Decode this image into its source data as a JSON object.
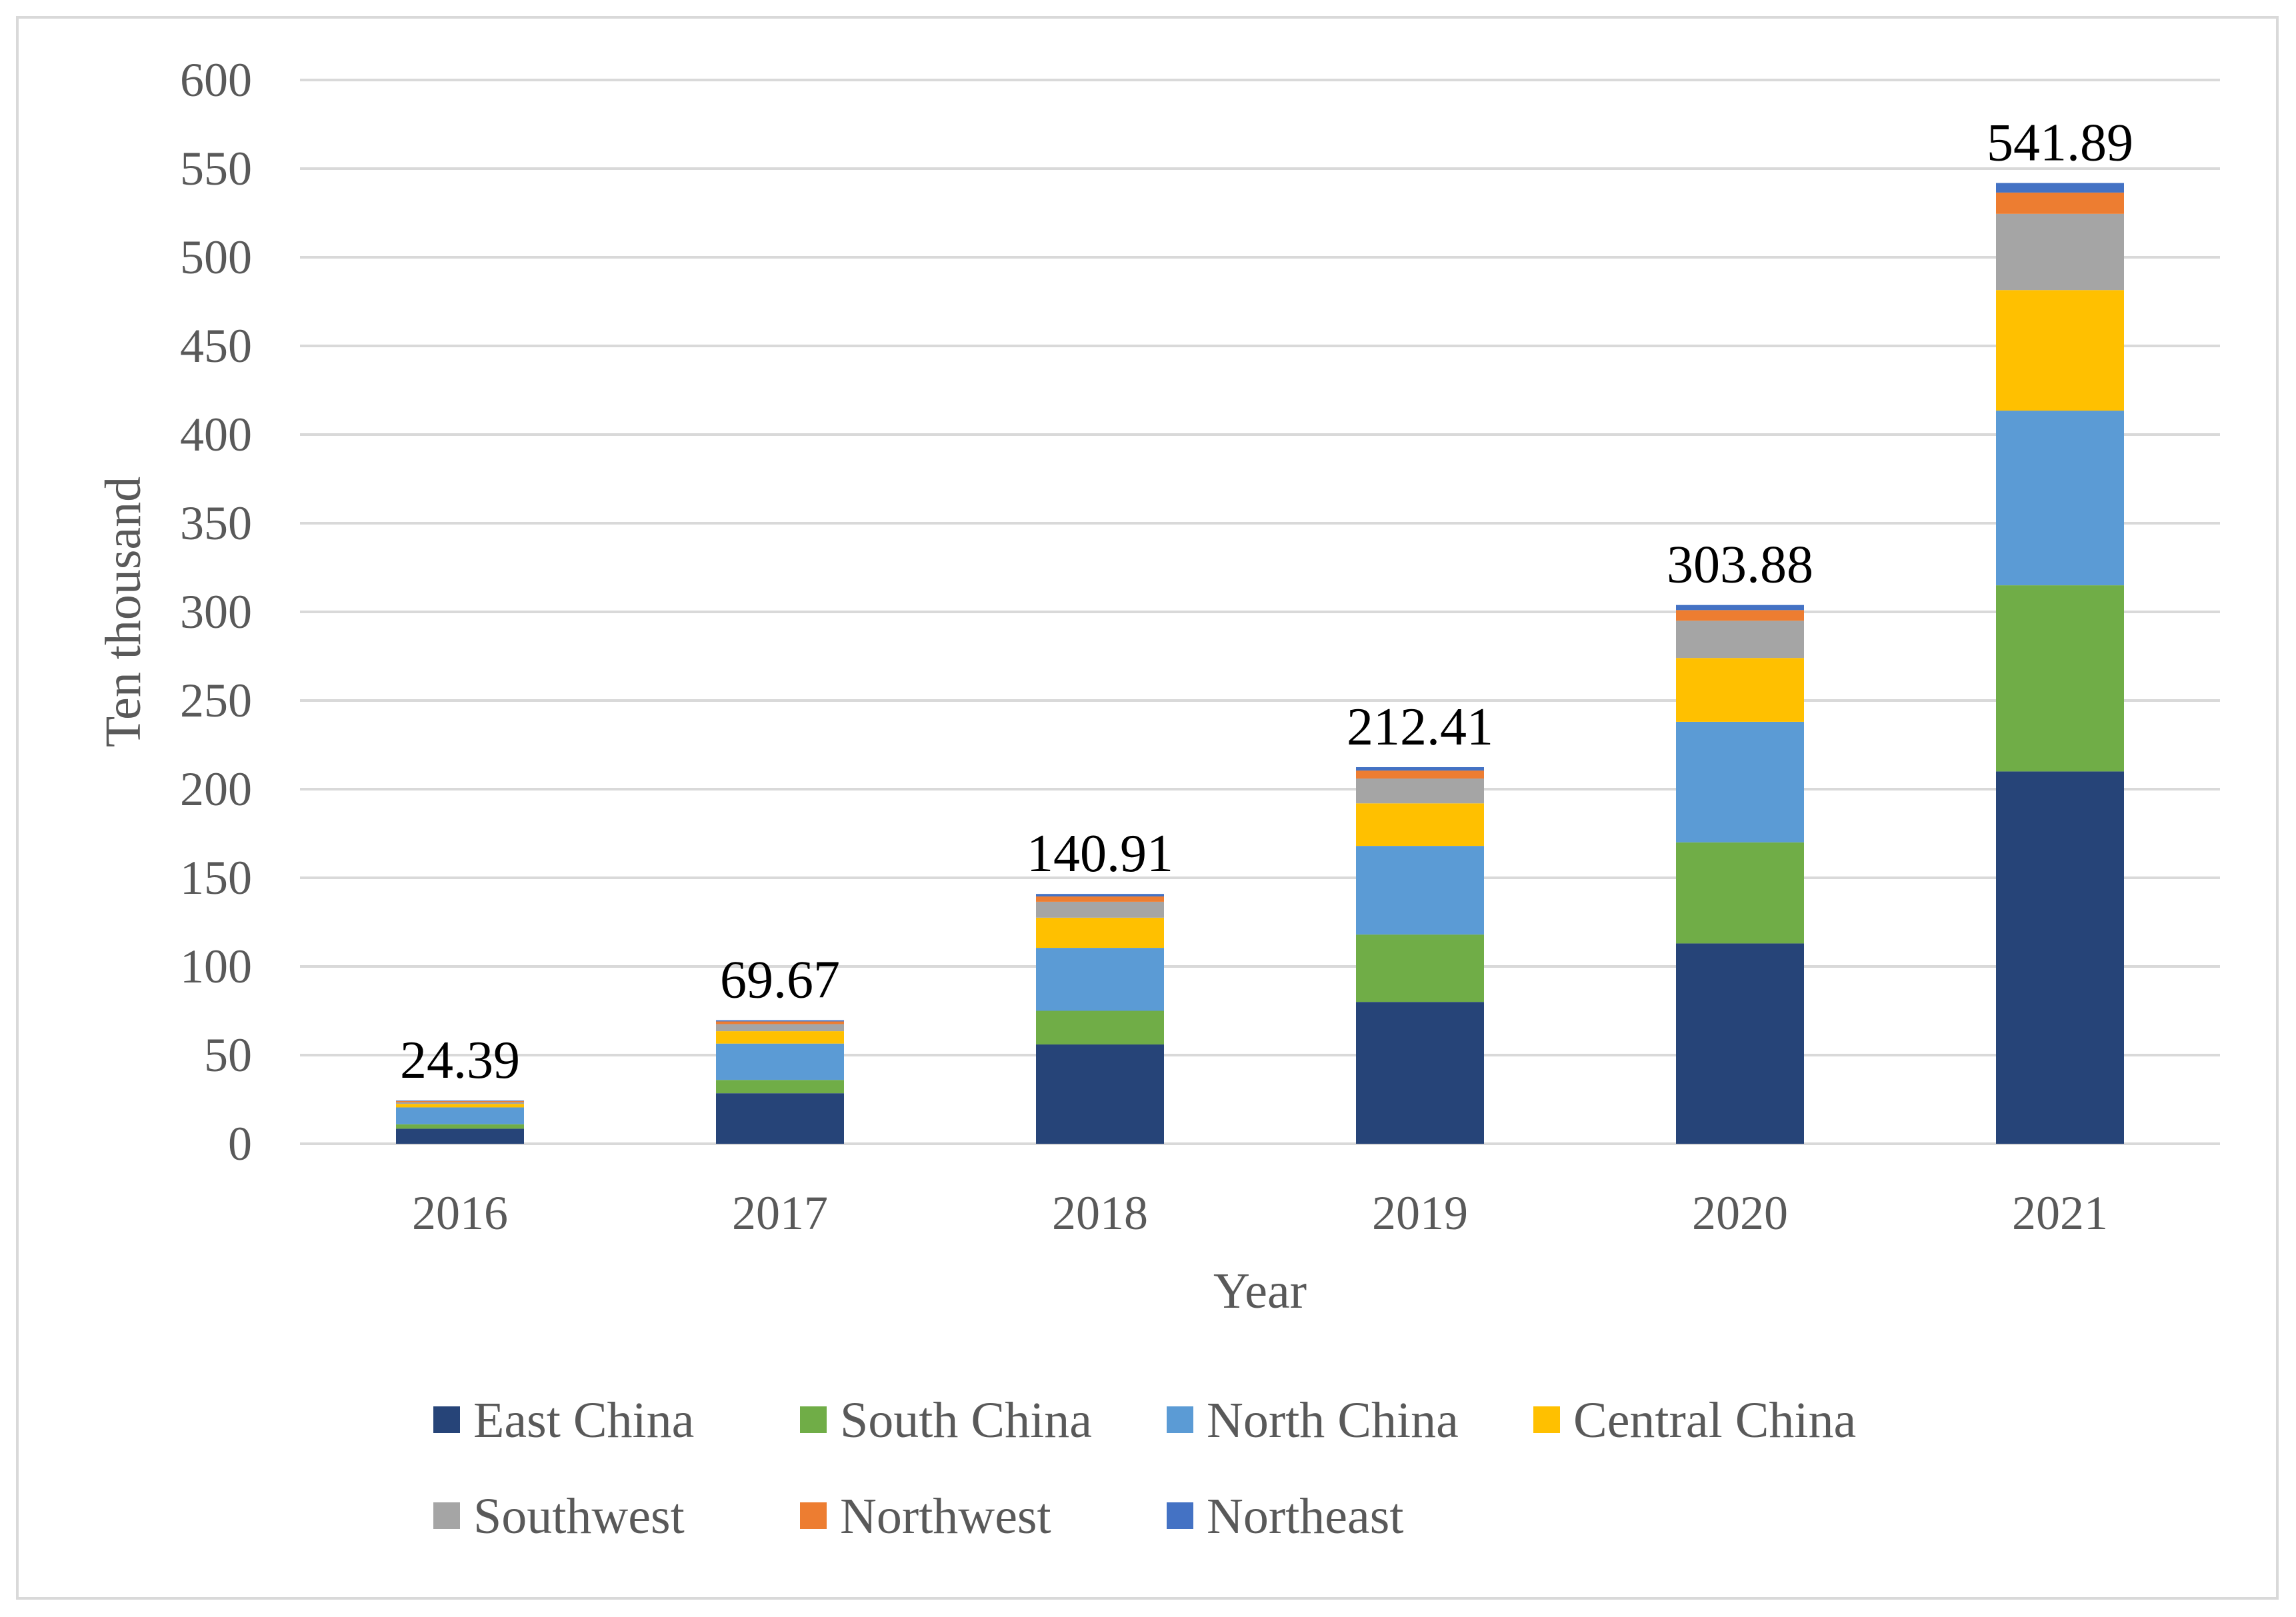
{
  "chart_data": {
    "type": "bar",
    "stacked": true,
    "xlabel": "Year",
    "ylabel": "Ten thousand",
    "ylim": [
      0,
      600
    ],
    "yticks": [
      0,
      50,
      100,
      150,
      200,
      250,
      300,
      350,
      400,
      450,
      500,
      550,
      600
    ],
    "grid": true,
    "legend_position": "bottom",
    "categories": [
      "2016",
      "2017",
      "2018",
      "2019",
      "2020",
      "2021"
    ],
    "totals": [
      "24.39",
      "69.67",
      "140.91",
      "212.41",
      "303.88",
      "541.89"
    ],
    "series": [
      {
        "name": "East China",
        "color": "#264478",
        "values": [
          8.5,
          28.5,
          56.0,
          80.0,
          113.0,
          210.0
        ]
      },
      {
        "name": "South China",
        "color": "#70AD47",
        "values": [
          2.5,
          7.5,
          19.0,
          38.0,
          57.0,
          105.0
        ]
      },
      {
        "name": "North China",
        "color": "#5B9BD5",
        "values": [
          9.5,
          20.5,
          35.5,
          50.0,
          68.0,
          98.5
        ]
      },
      {
        "name": "Central China",
        "color": "#FFC000",
        "values": [
          2.0,
          7.0,
          17.0,
          24.0,
          36.0,
          68.0
        ]
      },
      {
        "name": "Southwest",
        "color": "#A5A5A5",
        "values": [
          1.0,
          4.0,
          9.0,
          14.0,
          21.0,
          43.0
        ]
      },
      {
        "name": "Northwest",
        "color": "#ED7D31",
        "values": [
          0.59,
          1.5,
          3.0,
          4.5,
          6.0,
          12.0
        ]
      },
      {
        "name": "Northeast",
        "color": "#4472C4",
        "values": [
          0.3,
          0.67,
          1.41,
          1.91,
          2.88,
          5.39
        ]
      }
    ]
  }
}
